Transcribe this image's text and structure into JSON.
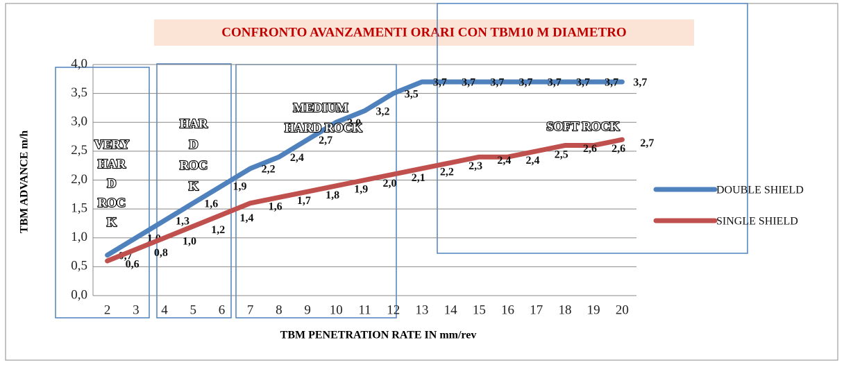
{
  "chart_data": {
    "type": "line",
    "title": "CONFRONTO AVANZAMENTI ORARI CON TBM10 M DIAMETRO",
    "x_label": "TBM PENETRATION RATE IN mm/rev",
    "y_label": "TBM ADVANCE m/h",
    "categories": [
      "2",
      "3",
      "4",
      "5",
      "6",
      "7",
      "8",
      "9",
      "10",
      "11",
      "12",
      "13",
      "14",
      "15",
      "16",
      "17",
      "18",
      "19",
      "20"
    ],
    "series": [
      {
        "name": "DOUBLE SHIELD",
        "color": "#4f81bd",
        "values": [
          0.7,
          1.0,
          1.3,
          1.6,
          1.9,
          2.2,
          2.4,
          2.7,
          3.0,
          3.2,
          3.5,
          3.7,
          3.7,
          3.7,
          3.7,
          3.7,
          3.7,
          3.7,
          3.7
        ],
        "value_labels": [
          "0,7",
          "1,0",
          "1,3",
          "1,6",
          "1,9",
          "2,2",
          "2,4",
          "2,7",
          "3,0",
          "3,2",
          "3,5",
          "3,7",
          "3,7",
          "3,7",
          "3,7",
          "3,7",
          "3,7",
          "3,7",
          "3,7"
        ]
      },
      {
        "name": "SINGLE SHIELD",
        "color": "#c0504d",
        "values": [
          0.6,
          0.8,
          1.0,
          1.2,
          1.4,
          1.6,
          1.7,
          1.8,
          1.9,
          2.0,
          2.1,
          2.2,
          2.3,
          2.4,
          2.4,
          2.5,
          2.6,
          2.6,
          2.7
        ],
        "value_labels": [
          "0,6",
          "0,8",
          "1,0",
          "1,2",
          "1,4",
          "1,6",
          "1,7",
          "1,8",
          "1,9",
          "2,0",
          "2,1",
          "2,2",
          "2,3",
          "2,4",
          "2,4",
          "2,5",
          "2,6",
          "2,6",
          "2,7"
        ]
      }
    ],
    "ylim": [
      0,
      4
    ],
    "yticks": [
      {
        "value": 0,
        "label": "0,0"
      },
      {
        "value": 0.5,
        "label": "0,5"
      },
      {
        "value": 1,
        "label": "1,0"
      },
      {
        "value": 1.5,
        "label": "1,5"
      },
      {
        "value": 2,
        "label": "2,0"
      },
      {
        "value": 2.5,
        "label": "2,5"
      },
      {
        "value": 3,
        "label": "3,0"
      },
      {
        "value": 3.5,
        "label": "3,5"
      },
      {
        "value": 4,
        "label": "4,0"
      }
    ],
    "grid": true,
    "legend": "right",
    "annotations": [
      {
        "lines": [
          "VERY",
          "HAR",
          "D",
          "ROC",
          "K"
        ]
      },
      {
        "lines": [
          "HAR",
          "D",
          "ROC",
          "K"
        ]
      },
      {
        "lines": [
          "MEDIUM",
          "HARD ROCK"
        ]
      },
      {
        "lines": [
          "SOFT ROCK"
        ]
      }
    ]
  }
}
